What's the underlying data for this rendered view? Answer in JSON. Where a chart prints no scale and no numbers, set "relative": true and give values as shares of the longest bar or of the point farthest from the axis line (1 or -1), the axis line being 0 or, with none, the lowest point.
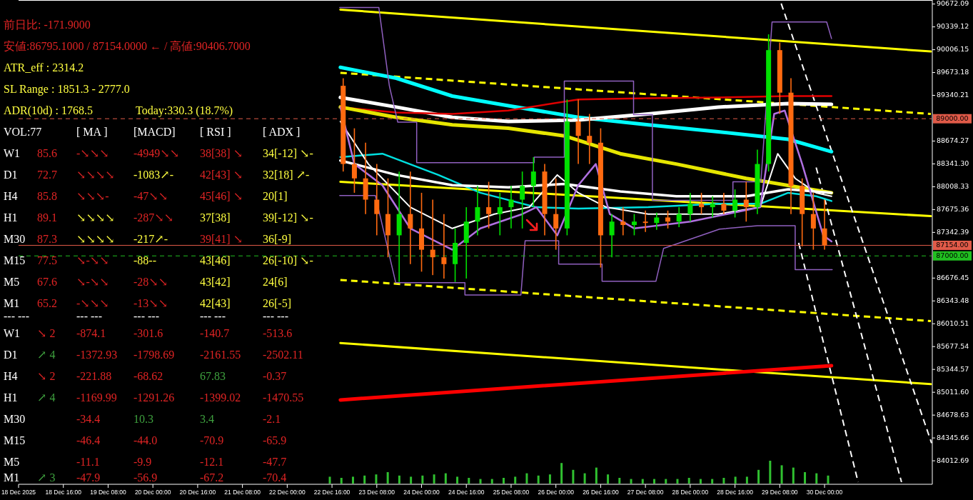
{
  "chart_data": [
    {
      "type": "candlestick",
      "x": [
        "2025-12-22T20:00",
        "2025-12-23T00:00",
        "2025-12-23T04:00",
        "2025-12-23T08:00",
        "2025-12-23T12:00",
        "2025-12-23T16:00",
        "2025-12-23T20:00",
        "2025-12-24T00:00",
        "2025-12-24T04:00",
        "2025-12-24T08:00",
        "2025-12-24T12:00",
        "2025-12-24T16:00",
        "2025-12-24T20:00",
        "2025-12-25T00:00",
        "2025-12-25T04:00",
        "2025-12-25T08:00",
        "2025-12-25T12:00",
        "2025-12-25T16:00",
        "2025-12-25T20:00",
        "2025-12-26T00:00",
        "2025-12-26T04:00",
        "2025-12-26T08:00",
        "2025-12-26T12:00",
        "2025-12-26T16:00",
        "2025-12-26T20:00",
        "2025-12-27T00:00",
        "2025-12-27T04:00",
        "2025-12-27T08:00",
        "2025-12-27T12:00",
        "2025-12-27T16:00",
        "2025-12-27T20:00",
        "2025-12-28T00:00",
        "2025-12-28T04:00",
        "2025-12-28T08:00",
        "2025-12-28T12:00",
        "2025-12-28T16:00",
        "2025-12-28T20:00",
        "2025-12-29T00:00",
        "2025-12-29T04:00",
        "2025-12-29T08:00",
        "2025-12-29T12:00",
        "2025-12-29T16:00",
        "2025-12-29T20:00",
        "2025-12-30T00:00"
      ],
      "ohlc": [
        [
          89480,
          89590,
          88230,
          88340
        ],
        [
          88340,
          88860,
          87920,
          88130
        ],
        [
          88130,
          88650,
          87610,
          87820
        ],
        [
          87820,
          88340,
          87300,
          87610
        ],
        [
          87610,
          88130,
          86980,
          87300
        ],
        [
          87300,
          88230,
          86620,
          87610
        ],
        [
          87610,
          88230,
          86880,
          87400
        ],
        [
          87400,
          87920,
          86770,
          87090
        ],
        [
          87090,
          87820,
          86720,
          86980
        ],
        [
          86980,
          87610,
          86670,
          86880
        ],
        [
          86880,
          87400,
          86620,
          87190
        ],
        [
          87190,
          87710,
          86670,
          87500
        ],
        [
          87500,
          88020,
          87300,
          87710
        ],
        [
          87710,
          88080,
          87400,
          87610
        ],
        [
          87610,
          87920,
          87300,
          87710
        ],
        [
          87710,
          88020,
          87400,
          87820
        ],
        [
          87820,
          88230,
          87400,
          88020
        ],
        [
          88020,
          88440,
          87710,
          88230
        ],
        [
          88230,
          88340,
          87300,
          87610
        ],
        [
          87610,
          88130,
          87090,
          87400
        ],
        [
          87400,
          89280,
          87300,
          88960
        ],
        [
          88960,
          89280,
          88340,
          88750
        ],
        [
          88750,
          89070,
          88340,
          88650
        ],
        [
          88650,
          88860,
          86830,
          87300
        ],
        [
          87300,
          87610,
          86980,
          87500
        ],
        [
          87500,
          87710,
          87300,
          87450
        ],
        [
          87450,
          87610,
          87300,
          87500
        ],
        [
          87500,
          87660,
          87350,
          87480
        ],
        [
          87480,
          87630,
          87380,
          87560
        ],
        [
          87560,
          87660,
          87400,
          87500
        ],
        [
          87500,
          87710,
          87420,
          87610
        ],
        [
          87610,
          87920,
          87500,
          87760
        ],
        [
          87760,
          87920,
          87610,
          87710
        ],
        [
          87710,
          87870,
          87560,
          87760
        ],
        [
          87760,
          87920,
          87610,
          87660
        ],
        [
          87660,
          87970,
          87560,
          87820
        ],
        [
          87820,
          88080,
          87500,
          87710
        ],
        [
          87710,
          88550,
          87610,
          88340
        ],
        [
          88340,
          90230,
          88230,
          90000
        ],
        [
          90000,
          90110,
          89070,
          89380
        ],
        [
          89380,
          89590,
          87610,
          88020
        ],
        [
          88020,
          88130,
          87140,
          87610
        ],
        [
          87610,
          87920,
          87090,
          87400
        ],
        [
          87400,
          87820,
          87090,
          87154
        ]
      ],
      "series": [
        {
          "type": "line",
          "color": "#ffff00",
          "x": [
            "2025-12-22T19:00",
            "2025-12-31T14:00"
          ],
          "values": [
            90590,
            89980
          ]
        },
        {
          "type": "line",
          "color": "#ffff00",
          "x": [
            "2025-12-22T19:00",
            "2025-12-31T14:00"
          ],
          "values": [
            88080,
            87580
          ]
        },
        {
          "type": "line",
          "color": "#ffff00",
          "x": [
            "2025-12-22T19:00",
            "2025-12-31T14:00"
          ],
          "values": [
            85730,
            85130
          ]
        },
        {
          "type": "line",
          "color": "#ffff00",
          "line_style": "dashed",
          "x": [
            "2025-12-22T19:00",
            "2025-12-31T14:00"
          ],
          "values": [
            89670,
            89070
          ]
        },
        {
          "type": "line",
          "color": "#ffff00",
          "line_style": "dashed",
          "x": [
            "2025-12-22T19:00",
            "2025-12-31T14:00"
          ],
          "values": [
            86650,
            86050
          ]
        },
        {
          "type": "line",
          "color": "#ff0000",
          "x": [
            "2025-12-22T19:00",
            "2025-12-30T02:30"
          ],
          "values": [
            84900,
            85400
          ]
        },
        {
          "type": "line",
          "color": "#ffffff",
          "line_style": "dashed",
          "x": [
            "2025-12-29T08:30",
            "2025-12-31T14:15"
          ],
          "values": [
            90680,
            84270
          ]
        },
        {
          "type": "line",
          "color": "#ffffff",
          "line_style": "dashed",
          "x": [
            "2025-12-29T14:45",
            "2025-12-30T12:00"
          ],
          "values": [
            87190,
            83700
          ]
        },
        {
          "type": "line",
          "color": "#ffffff",
          "line_style": "dashed",
          "x": [
            "2025-12-29T21:00",
            "2025-12-31T03:30"
          ],
          "values": [
            88290,
            83700
          ]
        },
        {
          "type": "line",
          "color": "#00ffff",
          "x": [
            "2025-12-22T19:00",
            "2025-12-23T15:00",
            "2025-12-24T11:00",
            "2025-12-25T07:00",
            "2025-12-26T08:00",
            "2025-12-27T09:00",
            "2025-12-28T10:00",
            "2025-12-29T11:00",
            "2025-12-30T02:30"
          ],
          "values": [
            89750,
            89590,
            89330,
            89190,
            89020,
            88910,
            88810,
            88700,
            88520
          ]
        },
        {
          "type": "line",
          "color": "#ffffff",
          "x": [
            "2025-12-22T19:00",
            "2025-12-23T15:00",
            "2025-12-24T11:00",
            "2025-12-25T07:00",
            "2025-12-26T08:00",
            "2025-12-27T09:00",
            "2025-12-28T10:00",
            "2025-12-29T11:00",
            "2025-12-30T02:30"
          ],
          "values": [
            89310,
            89170,
            89020,
            88960,
            88980,
            89070,
            89170,
            89220,
            89210
          ]
        },
        {
          "type": "line",
          "color": "#e00000",
          "x": [
            "2025-12-22T19:00",
            "2025-12-23T15:00",
            "2025-12-24T11:00",
            "2025-12-25T07:00",
            "2025-12-26T08:00",
            "2025-12-27T09:00",
            "2025-12-28T10:00",
            "2025-12-29T11:00",
            "2025-12-30T02:30"
          ],
          "values": [
            89170,
            89090,
            89070,
            89120,
            89280,
            89300,
            89310,
            89330,
            89330
          ]
        },
        {
          "type": "line",
          "color": "#e6e600",
          "x": [
            "2025-12-22T19:00",
            "2025-12-23T15:00",
            "2025-12-24T11:00",
            "2025-12-25T07:00",
            "2025-12-26T03:00",
            "2025-12-26T23:00",
            "2025-12-27T19:00",
            "2025-12-28T20:00",
            "2025-12-30T02:30"
          ],
          "values": [
            89170,
            89020,
            88910,
            88860,
            88750,
            88490,
            88340,
            88130,
            87920
          ]
        },
        {
          "type": "line",
          "color": "#00e0e0",
          "x": [
            "2025-12-22T19:00",
            "2025-12-23T10:00",
            "2025-12-24T06:00",
            "2025-12-24T21:00",
            "2025-12-25T17:00",
            "2025-12-26T08:00",
            "2025-12-27T09:00",
            "2025-12-28T10:00",
            "2025-12-29T01:00",
            "2025-12-29T11:00",
            "2025-12-29T21:00",
            "2025-12-30T02:30"
          ],
          "values": [
            88440,
            88490,
            88180,
            87920,
            87710,
            87690,
            87710,
            87760,
            87760,
            87920,
            87870,
            87800
          ]
        },
        {
          "type": "line",
          "color": "#ffffff",
          "x": [
            "2025-12-22T19:00",
            "2025-12-23T15:00",
            "2025-12-24T11:00",
            "2025-12-25T07:00",
            "2025-12-26T03:00",
            "2025-12-26T23:00",
            "2025-12-27T19:00",
            "2025-12-28T20:00",
            "2025-12-29T11:00",
            "2025-12-30T02:30"
          ],
          "values": [
            88390,
            88180,
            88030,
            88000,
            88050,
            87940,
            87870,
            87870,
            87970,
            87920
          ]
        },
        {
          "type": "line",
          "color": "#ffffff",
          "x": [
            "2025-12-22T19:00",
            "2025-12-23T05:00",
            "2025-12-23T20:00",
            "2025-12-24T11:00",
            "2025-12-25T02:00",
            "2025-12-25T14:30",
            "2025-12-26T00:30",
            "2025-12-26T08:00",
            "2025-12-26T18:00",
            "2025-12-27T09:00",
            "2025-12-28T10:00",
            "2025-12-29T01:00",
            "2025-12-29T07:15",
            "2025-12-29T13:30",
            "2025-12-29T21:00",
            "2025-12-30T02:30"
          ],
          "values": [
            88960,
            88340,
            87710,
            87400,
            87610,
            87710,
            88180,
            87920,
            87710,
            87610,
            87610,
            87710,
            88490,
            88130,
            87920,
            87870
          ]
        },
        {
          "type": "line",
          "color": "#b070e0",
          "x": [
            "2025-12-22T19:00",
            "2025-12-23T00:00",
            "2025-12-23T10:00",
            "2025-12-23T20:00",
            "2025-12-24T11:00",
            "2025-12-24T21:00",
            "2025-12-25T12:00",
            "2025-12-25T17:00",
            "2025-12-26T00:30",
            "2025-12-26T08:00",
            "2025-12-26T14:15",
            "2025-12-26T19:15",
            "2025-12-27T04:00",
            "2025-12-28T00:00",
            "2025-12-29T01:00",
            "2025-12-29T06:00",
            "2025-12-29T09:45",
            "2025-12-29T16:00",
            "2025-12-29T23:30",
            "2025-12-30T02:30"
          ],
          "values": [
            89170,
            88340,
            88030,
            87400,
            87090,
            87400,
            87610,
            87710,
            87300,
            88030,
            88340,
            87610,
            87400,
            87500,
            87710,
            89070,
            89120,
            88340,
            87300,
            87210
          ]
        },
        {
          "type": "line",
          "color": "#9060c0",
          "x": [
            "2025-12-22T18:45",
            "2025-12-23T08:45",
            "2025-12-23T12:30",
            "2025-12-23T15:30",
            "2025-12-23T22:15",
            "2025-12-23T22:15",
            "2025-12-25T16:15",
            "2025-12-25T16:15",
            "2025-12-26T03:00",
            "2025-12-26T03:00",
            "2025-12-27T03:45",
            "2025-12-27T03:45",
            "2025-12-27T10:30",
            "2025-12-27T10:30",
            "2025-12-28T15:15",
            "2025-12-28T15:15",
            "2025-12-29T01:15",
            "2025-12-29T05:15",
            "2025-12-30T00:45",
            "2025-12-30T02:30"
          ],
          "values": [
            90620,
            90620,
            89480,
            88950,
            88950,
            88360,
            88360,
            88440,
            88440,
            89550,
            89550,
            89060,
            89060,
            87810,
            87810,
            88080,
            88080,
            90410,
            90410,
            90170
          ]
        },
        {
          "type": "line",
          "color": "#9060c0",
          "x": [
            "2025-12-22T18:45",
            "2025-12-23T07:30",
            "2025-12-23T14:45",
            "2025-12-24T15:30",
            "2025-12-24T15:30",
            "2025-12-25T11:30",
            "2025-12-25T13:00",
            "2025-12-26T01:00",
            "2025-12-26T01:00",
            "2025-12-26T16:30",
            "2025-12-26T16:30",
            "2025-12-27T11:45",
            "2025-12-27T14:30",
            "2025-12-28T10:30",
            "2025-12-29T00:00",
            "2025-12-29T13:30",
            "2025-12-29T13:30",
            "2025-12-30T02:45"
          ],
          "values": [
            87880,
            87880,
            86610,
            86610,
            86430,
            86430,
            87220,
            87220,
            86880,
            86880,
            86630,
            86630,
            87110,
            87390,
            87440,
            87440,
            86800,
            86800
          ]
        }
      ],
      "xlim": [
        "2025-12-18T00:00",
        "2025-12-31T14:15"
      ],
      "xticks": [
        {
          "value": "2025-12-18T00:00",
          "label": "18 Dec 2025"
        },
        {
          "value": "2025-12-18T16:00",
          "label": "18 Dec 16:00"
        },
        {
          "value": "2025-12-19T08:00",
          "label": "19 Dec 08:00"
        },
        {
          "value": "2025-12-20T00:00",
          "label": "20 Dec 00:00"
        },
        {
          "value": "2025-12-20T16:00",
          "label": "20 Dec 16:00"
        },
        {
          "value": "2025-12-21T08:00",
          "label": "21 Dec 08:00"
        },
        {
          "value": "2025-12-22T00:00",
          "label": "22 Dec 00:00"
        },
        {
          "value": "2025-12-22T16:00",
          "label": "22 Dec 16:00"
        },
        {
          "value": "2025-12-23T08:00",
          "label": "23 Dec 08:00"
        },
        {
          "value": "2025-12-24T00:00",
          "label": "24 Dec 00:00"
        },
        {
          "value": "2025-12-24T16:00",
          "label": "24 Dec 16:00"
        },
        {
          "value": "2025-12-25T08:00",
          "label": "25 Dec 08:00"
        },
        {
          "value": "2025-12-26T00:00",
          "label": "26 Dec 00:00"
        },
        {
          "value": "2025-12-26T16:00",
          "label": "26 Dec 16:00"
        },
        {
          "value": "2025-12-27T08:00",
          "label": "27 Dec 08:00"
        },
        {
          "value": "2025-12-28T00:00",
          "label": "28 Dec 00:00"
        },
        {
          "value": "2025-12-28T16:00",
          "label": "28 Dec 16:00"
        },
        {
          "value": "2025-12-29T08:00",
          "label": "29 Dec 08:00"
        },
        {
          "value": "2025-12-30T00:00",
          "label": "30 Dec 00:00"
        }
      ],
      "ylim": [
        83670,
        90710
      ],
      "yticks": [
        {
          "value": 90672.09,
          "label": "90672.09"
        },
        {
          "value": 90339.12,
          "label": "90339.12"
        },
        {
          "value": 90006.15,
          "label": "90006.15"
        },
        {
          "value": 89673.18,
          "label": "89673.18"
        },
        {
          "value": 89340.21,
          "label": "89340.21"
        },
        {
          "value": 88674.27,
          "label": "88674.27"
        },
        {
          "value": 88341.3,
          "label": "88341.30"
        },
        {
          "value": 88008.33,
          "label": "88008.33"
        },
        {
          "value": 87675.36,
          "label": "87675.36"
        },
        {
          "value": 87342.39,
          "label": "87342.39"
        },
        {
          "value": 86676.45,
          "label": "86676.45"
        },
        {
          "value": 86343.48,
          "label": "86343.48"
        },
        {
          "value": 86010.51,
          "label": "86010.51"
        },
        {
          "value": 85677.54,
          "label": "85677.54"
        },
        {
          "value": 85344.57,
          "label": "85344.57"
        },
        {
          "value": 85011.6,
          "label": "85011.60"
        },
        {
          "value": 84678.63,
          "label": "84678.63"
        },
        {
          "value": 84345.66,
          "label": "84345.66"
        },
        {
          "value": 84012.69,
          "label": "84012.69"
        }
      ],
      "ref_lines": [
        {
          "axis": "y",
          "value": 89000,
          "label": "89000.00",
          "color": "#e05a48",
          "line_style": "dashed"
        },
        {
          "axis": "y",
          "value": 87154,
          "label": "87154.00",
          "color": "#e05a48",
          "line_style": "solid"
        },
        {
          "axis": "y",
          "value": 87000,
          "label": "87000.00",
          "color": "#20c020",
          "line_style": "dashed"
        }
      ],
      "annotations": [
        "前日比: -171.9000",
        "安値:86795.1000 / 87154.0000 ←  / 高値:90406.7000",
        "ATR_eff : 2314.2",
        "SL Range : 1851.3 - 2777.0",
        "ADR(10d) : 1768.5",
        "Today:330.3 (18.7%)",
        "VOL:77",
        "[ MA ]",
        "[MACD]",
        "[ RSI ]",
        "[ ADX ]",
        "W1",
        "85.6",
        "-↘↘↘",
        "-4949↘↘",
        "38[38] ↘",
        "34[-12] ↘-",
        "D1",
        "72.7",
        "↘↘↘↘",
        "-1083↗-",
        "42[43] ↘",
        "32[18] ↗-",
        "H4",
        "85.8",
        "↘↘↘-",
        "-47↘↘",
        "45[46] ↘",
        "20[1]",
        "H1",
        "89.1",
        "↘↘↘↘",
        "-287↘↘",
        "37[38]",
        "39[-12] ↘-",
        "M30",
        "87.3",
        "↘↘↘↘",
        "-217↗-",
        "39[41] ↘",
        "36[-9]",
        "M15",
        "77.5",
        "↘-↘↘",
        "-88--",
        "43[46]",
        "26[-10] ↘-",
        "M5",
        "67.6",
        "↘-↘↘",
        "-28↘↘",
        "43[42]",
        "24[6]",
        "M1",
        "65.2",
        "-↘↘↘",
        "-13↘↘",
        "42[43]",
        "26[-5]",
        "--- ---",
        "--- ---",
        "--- ---",
        "--- ---",
        "--- ---",
        "W1",
        "↘ 2",
        "-874.1",
        "-301.6",
        "-140.7",
        "-513.6",
        "D1",
        "↗ 4",
        "-1372.93",
        "-1798.69",
        "-2161.55",
        "-2502.11",
        "H4",
        "↘ 2",
        "-221.88",
        "-68.62",
        "67.83",
        "-0.37",
        "H1",
        "↗ 4",
        "-1169.99",
        "-1291.26",
        "-1399.02",
        "-1470.55",
        "M30",
        "-34.4",
        "10.3",
        "3.4",
        "-2.1",
        "M15",
        "-46.4",
        "-44.0",
        "-70.9",
        "-65.9",
        "M5",
        "-11.1",
        "-9.9",
        "-12.1",
        "-47.7",
        "M1",
        "↗ 3",
        "-47.9",
        "-56.9",
        "-67.2",
        "-70.4"
      ]
    },
    {
      "type": "bar",
      "relative": true,
      "color": "#30c030",
      "categories": [
        null,
        null,
        null,
        null,
        null,
        null,
        null,
        null,
        null,
        null,
        null,
        null,
        null,
        null,
        null,
        null,
        null,
        null,
        null,
        null,
        null,
        null,
        null,
        null,
        null,
        null,
        null,
        null,
        null,
        null,
        null,
        null,
        null,
        null,
        null,
        null,
        null,
        null,
        null,
        null,
        null,
        null,
        null,
        null
      ],
      "values": [
        0.3,
        0.25,
        0.3,
        0.35,
        0.4,
        0.5,
        0.35,
        0.3,
        0.35,
        0.4,
        0.45,
        0.3,
        0.25,
        0.2,
        0.2,
        0.25,
        0.3,
        0.45,
        0.35,
        0.4,
        0.9,
        0.6,
        0.45,
        0.7,
        0.4,
        0.25,
        0.2,
        0.2,
        0.2,
        0.2,
        0.2,
        0.25,
        0.2,
        0.2,
        0.25,
        0.3,
        0.3,
        0.6,
        1,
        0.8,
        0.7,
        0.5,
        0.45,
        0.35
      ]
    }
  ]
}
